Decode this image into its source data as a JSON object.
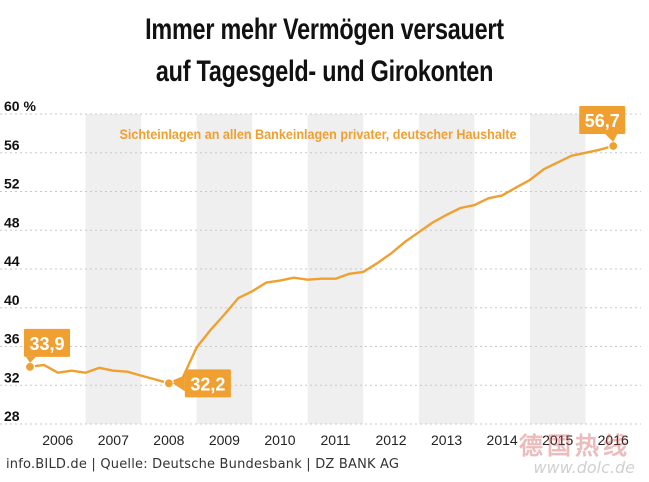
{
  "header": {
    "title_line1": "Immer mehr Vermögen versauert",
    "title_line2": "auf Tagesgeld- und Girokonten"
  },
  "footer": {
    "source": "info.BILD.de | Quelle: Deutsche Bundesbank | DZ BANK AG"
  },
  "watermark": {
    "chars": "德国热线",
    "url": "www.dolc.de"
  },
  "colors": {
    "series": "#f0a030",
    "band": "#efefef",
    "text": "#111111"
  },
  "chart_data": {
    "type": "line",
    "title": "",
    "xlabel": "",
    "ylabel": "",
    "ylim": [
      28,
      60
    ],
    "xlim": [
      2005.5,
      2016.5
    ],
    "y_ticks": [
      {
        "value": 28,
        "label": "28"
      },
      {
        "value": 32,
        "label": "32"
      },
      {
        "value": 36,
        "label": "36"
      },
      {
        "value": 40,
        "label": "40"
      },
      {
        "value": 44,
        "label": "44"
      },
      {
        "value": 48,
        "label": "48"
      },
      {
        "value": 52,
        "label": "52"
      },
      {
        "value": 56,
        "label": "56"
      },
      {
        "value": 60,
        "label": "60 %"
      }
    ],
    "x_ticks": [
      "2006",
      "2007",
      "2008",
      "2009",
      "2010",
      "2011",
      "2012",
      "2013",
      "2014",
      "2015",
      "2016"
    ],
    "shaded_years": [
      "2007",
      "2009",
      "2011",
      "2013",
      "2015"
    ],
    "grid": true,
    "series": [
      {
        "name": "Sichteinlagen an allen Bankeinlagen privater, deutscher Haushalte",
        "x": [
          2005.5,
          2005.75,
          2006.0,
          2006.25,
          2006.5,
          2006.75,
          2007.0,
          2007.25,
          2007.5,
          2007.75,
          2008.0,
          2008.25,
          2008.5,
          2008.75,
          2009.0,
          2009.25,
          2009.5,
          2009.75,
          2010.0,
          2010.25,
          2010.5,
          2010.75,
          2011.0,
          2011.25,
          2011.5,
          2011.75,
          2012.0,
          2012.25,
          2012.5,
          2012.75,
          2013.0,
          2013.25,
          2013.5,
          2013.75,
          2014.0,
          2014.25,
          2014.5,
          2014.75,
          2015.0,
          2015.25,
          2015.5,
          2015.75,
          2016.0
        ],
        "values": [
          33.9,
          34.1,
          33.3,
          33.5,
          33.3,
          33.8,
          33.5,
          33.4,
          33.0,
          32.6,
          32.2,
          32.8,
          35.9,
          37.7,
          39.3,
          41.0,
          41.7,
          42.6,
          42.8,
          43.1,
          42.9,
          43.0,
          43.0,
          43.5,
          43.7,
          44.6,
          45.6,
          46.8,
          47.8,
          48.8,
          49.6,
          50.3,
          50.6,
          51.3,
          51.6,
          52.4,
          53.2,
          54.3,
          55.0,
          55.7,
          56.0,
          56.3,
          56.7
        ]
      }
    ],
    "annotations": [
      {
        "x": 2005.5,
        "y": 33.9,
        "label": "33,9"
      },
      {
        "x": 2008.0,
        "y": 32.2,
        "label": "32,2"
      },
      {
        "x": 2016.0,
        "y": 56.7,
        "label": "56,7"
      }
    ],
    "legend": "top-right"
  }
}
